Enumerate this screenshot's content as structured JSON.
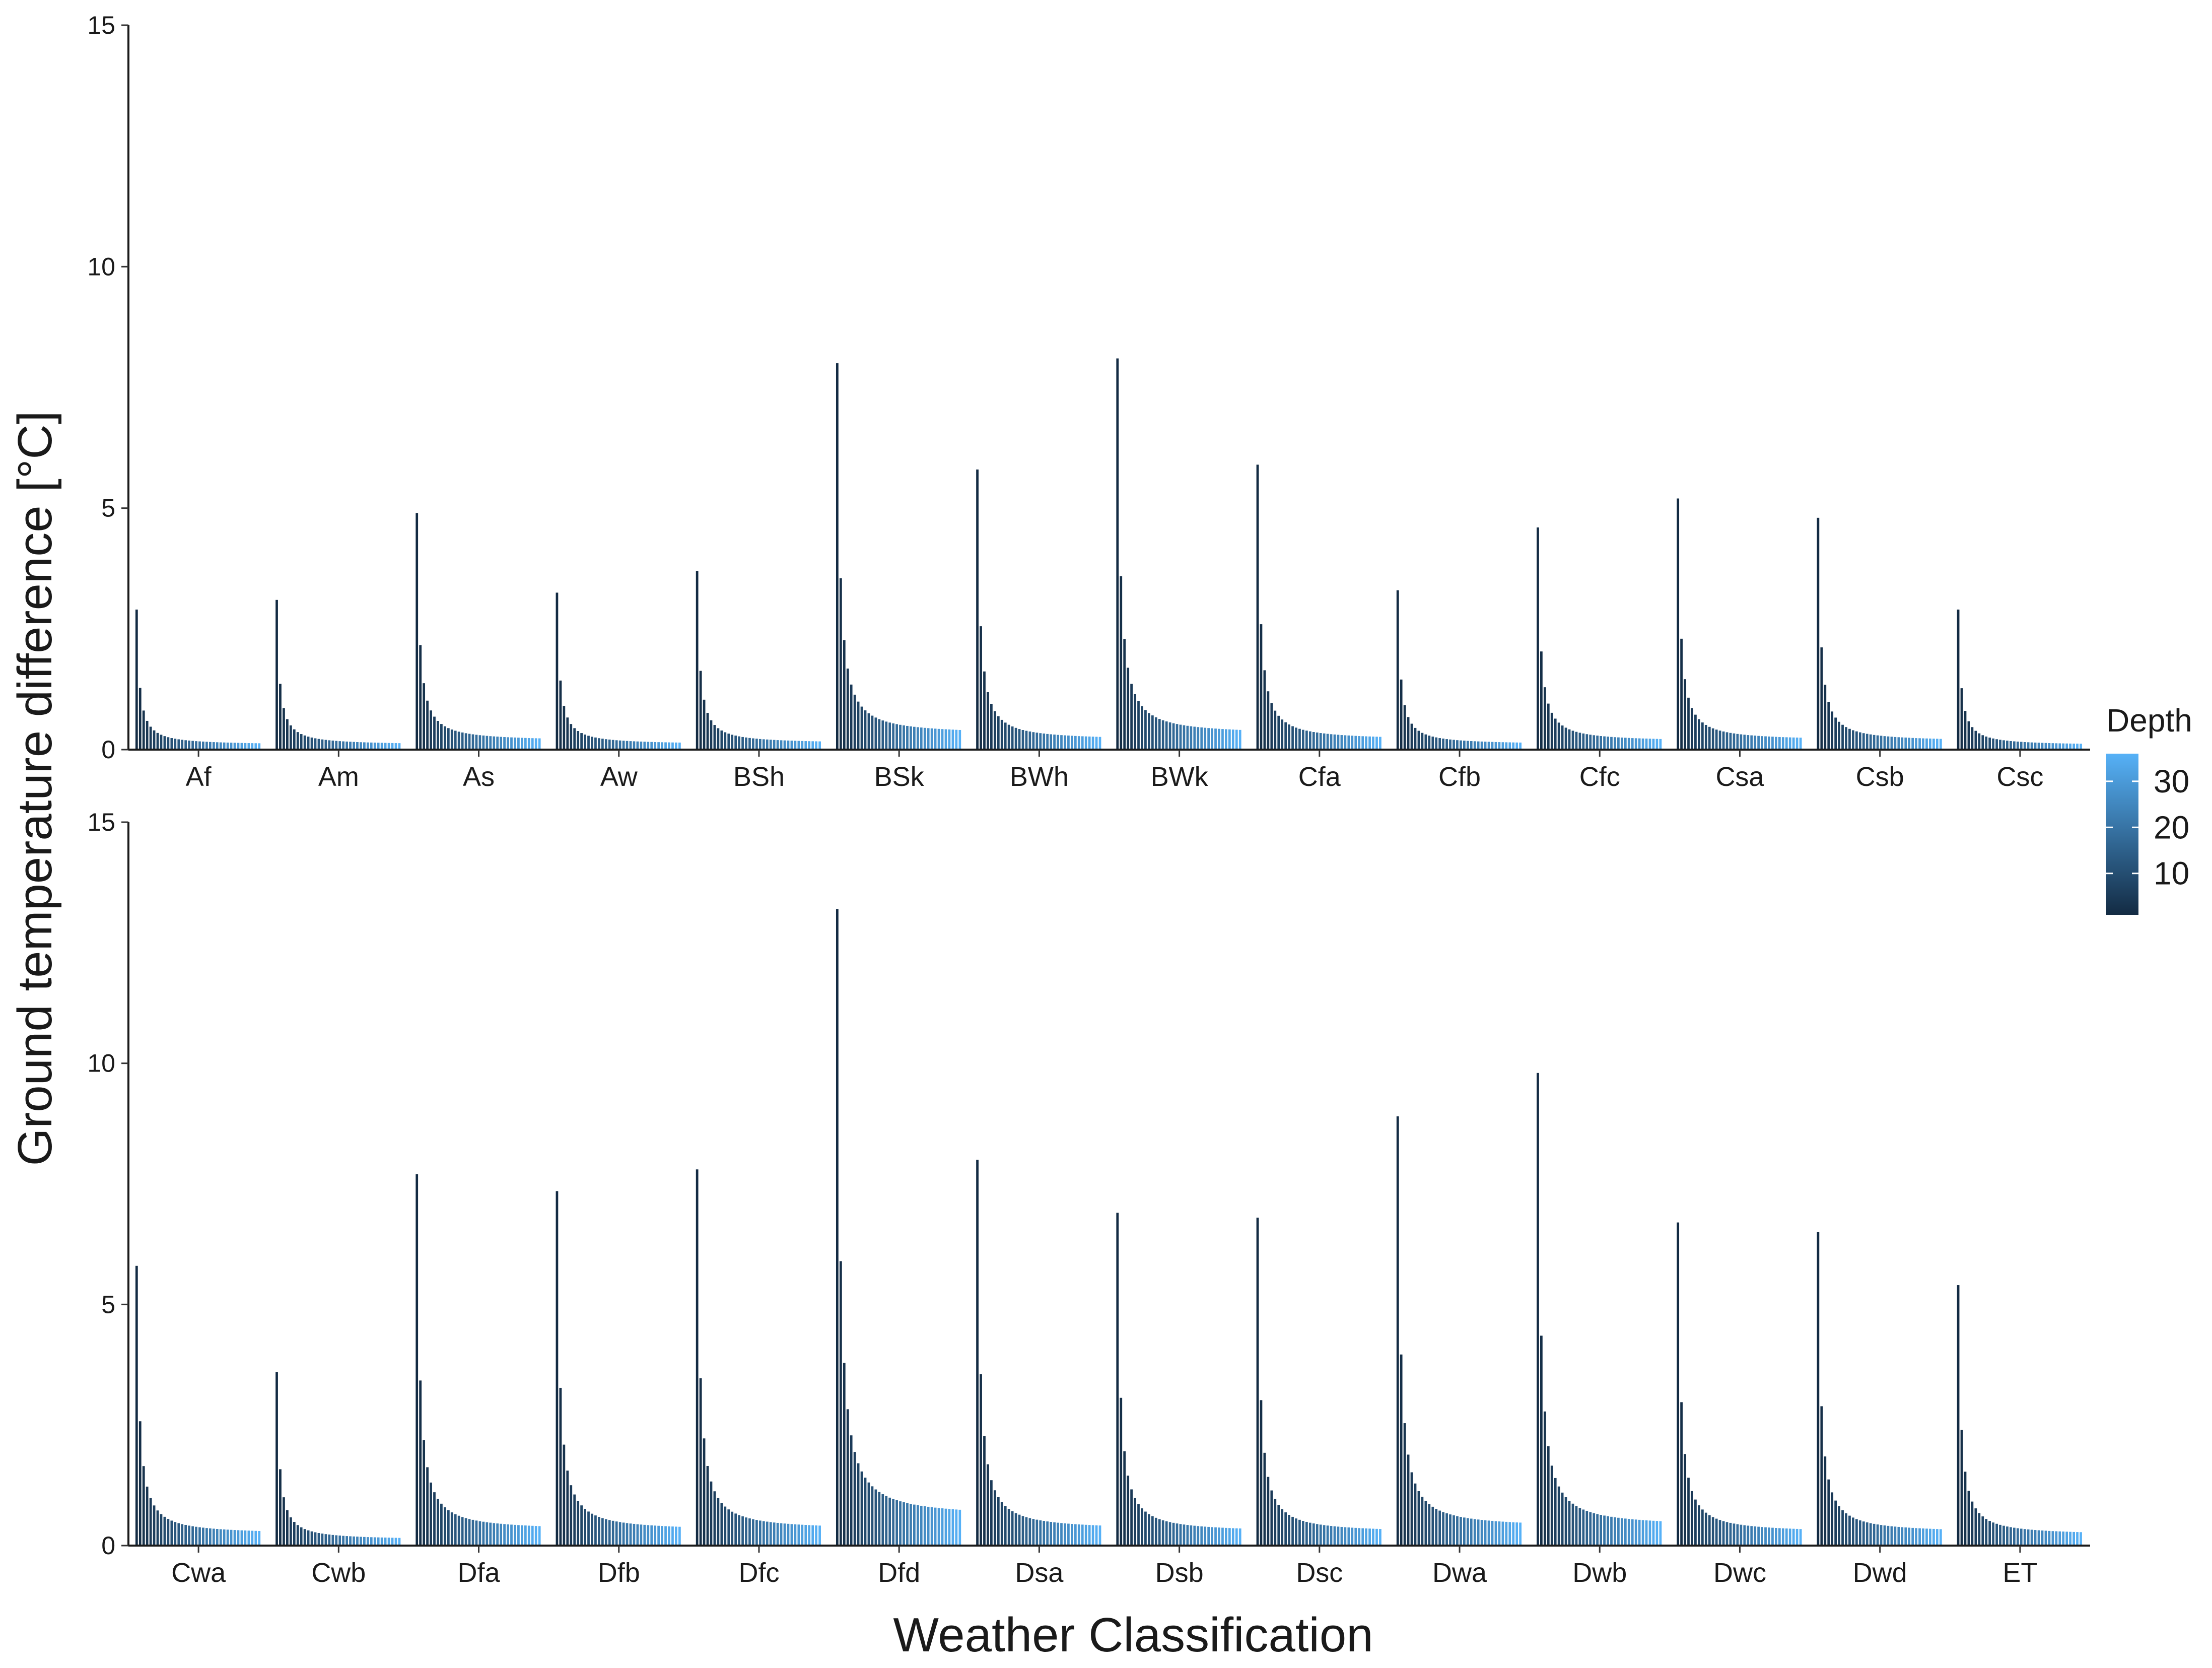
{
  "chart_data": {
    "type": "bar",
    "xlabel": "Weather Classification",
    "ylabel": "Ground temperature difference [°C]",
    "legend": {
      "title": "Depth",
      "ticks": [
        10,
        20,
        30
      ],
      "range": [
        1,
        36
      ],
      "low_color": "#132b43",
      "high_color": "#56b1f7",
      "position": "right"
    },
    "depth_range": [
      1,
      36
    ],
    "grid": false,
    "facets": [
      {
        "ylim": [
          0,
          15
        ],
        "yticks": [
          0,
          5,
          10,
          15
        ],
        "groups": [
          {
            "category": "Af",
            "max": 2.9,
            "tail": 0.1
          },
          {
            "category": "Am",
            "max": 3.1,
            "tail": 0.1
          },
          {
            "category": "As",
            "max": 4.9,
            "tail": 0.18
          },
          {
            "category": "Aw",
            "max": 3.25,
            "tail": 0.11
          },
          {
            "category": "BSh",
            "max": 3.7,
            "tail": 0.13
          },
          {
            "category": "BSk",
            "max": 8.0,
            "tail": 0.32
          },
          {
            "category": "BWh",
            "max": 5.8,
            "tail": 0.2
          },
          {
            "category": "BWk",
            "max": 8.1,
            "tail": 0.32
          },
          {
            "category": "Cfa",
            "max": 5.9,
            "tail": 0.2
          },
          {
            "category": "Cfb",
            "max": 3.3,
            "tail": 0.11
          },
          {
            "category": "Cfc",
            "max": 4.6,
            "tail": 0.17
          },
          {
            "category": "Csa",
            "max": 5.2,
            "tail": 0.19
          },
          {
            "category": "Csb",
            "max": 4.8,
            "tail": 0.17
          },
          {
            "category": "Csc",
            "max": 2.9,
            "tail": 0.09
          }
        ]
      },
      {
        "ylim": [
          0,
          15
        ],
        "yticks": [
          0,
          5,
          10,
          15
        ],
        "groups": [
          {
            "category": "Cwa",
            "max": 5.8,
            "tail": 0.24
          },
          {
            "category": "Cwb",
            "max": 3.6,
            "tail": 0.12
          },
          {
            "category": "Dfa",
            "max": 7.7,
            "tail": 0.32
          },
          {
            "category": "Dfb",
            "max": 7.35,
            "tail": 0.31
          },
          {
            "category": "Dfc",
            "max": 7.8,
            "tail": 0.33
          },
          {
            "category": "Dfd",
            "max": 13.2,
            "tail": 0.6
          },
          {
            "category": "Dsa",
            "max": 8.0,
            "tail": 0.33
          },
          {
            "category": "Dsb",
            "max": 6.9,
            "tail": 0.28
          },
          {
            "category": "Dsc",
            "max": 6.8,
            "tail": 0.27
          },
          {
            "category": "Dwa",
            "max": 8.9,
            "tail": 0.38
          },
          {
            "category": "Dwb",
            "max": 9.8,
            "tail": 0.4
          },
          {
            "category": "Dwc",
            "max": 6.7,
            "tail": 0.27
          },
          {
            "category": "Dwd",
            "max": 6.5,
            "tail": 0.27
          },
          {
            "category": "ET",
            "max": 5.4,
            "tail": 0.22
          }
        ]
      }
    ]
  }
}
